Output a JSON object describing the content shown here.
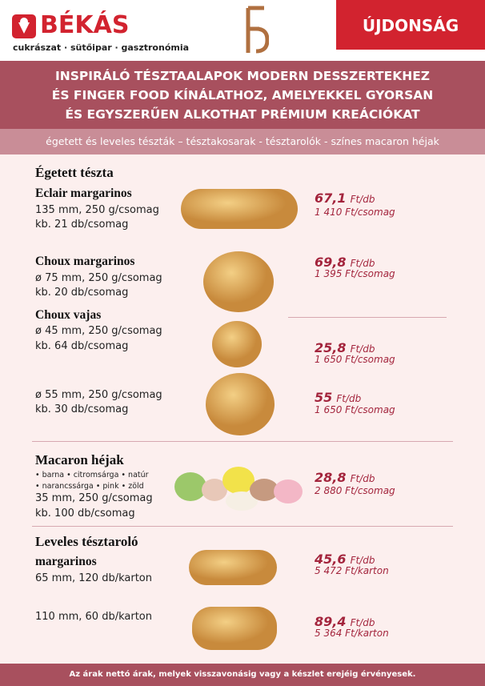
{
  "header": {
    "logo": "BÉKÁS",
    "tagline": "cukrászat · sütőipar · gasztronómia",
    "badge": "ÚJDONSÁG"
  },
  "headline": [
    "INSPIRÁLÓ TÉSZTAALAPOK MODERN DESSZERTEKHEZ",
    "ÉS FINGER FOOD KÍNÁLATHOZ, AMELYEKKEL GYORSAN",
    "ÉS EGYSZERŰEN ALKOTHAT PRÉMIUM KREÁCIÓKAT"
  ],
  "subheader": "égetett és leveles tészták – tésztakosarak - tésztarolók - színes macaron héjak",
  "sections": [
    {
      "title": "Égetett tészta",
      "items": [
        {
          "name": "Eclair margarinos",
          "specs": [
            "135 mm, 250 g/csomag",
            "kb. 21 db/csomag"
          ],
          "price": "67,1",
          "unit": "Ft/db",
          "pack": "1 410 Ft/csomag"
        },
        {
          "name": "Choux margarinos",
          "specs": [
            "ø 75 mm, 250 g/csomag",
            "kb. 20 db/csomag"
          ],
          "price": "69,8",
          "unit": "Ft/db",
          "pack": "1 395 Ft/csomag"
        },
        {
          "name": "Choux vajas",
          "specs": [
            "ø 45 mm, 250 g/csomag",
            "kb. 64 db/csomag"
          ],
          "price": "25,8",
          "unit": "Ft/db",
          "pack": "1 650 Ft/csomag"
        },
        {
          "specs": [
            "ø 55  mm, 250 g/csomag",
            "kb. 30 db/csomag"
          ],
          "price": "55",
          "unit": "Ft/db",
          "pack": "1 650 Ft/csomag"
        }
      ]
    },
    {
      "title": "Macaron héjak",
      "items": [
        {
          "colors": [
            "• barna • citromsárga • natúr",
            "• narancssárga • pink • zöld"
          ],
          "specs": [
            "35 mm, 250 g/csomag",
            "kb. 100 db/csomag"
          ],
          "price": "28,8",
          "unit": "Ft/db",
          "pack": "2 880 Ft/csomag"
        }
      ]
    },
    {
      "title": "Leveles tésztaroló",
      "items": [
        {
          "name": "margarinos",
          "specs": [
            "65 mm, 120 db/karton"
          ],
          "price": "45,6",
          "unit": "Ft/db",
          "pack": "5 472 Ft/karton"
        },
        {
          "specs": [
            "110 mm, 60 db/karton"
          ],
          "price": "89,4",
          "unit": "Ft/db",
          "pack": "5 364 Ft/karton"
        }
      ]
    }
  ],
  "footer": "Az árak nettó árak, melyek visszavonásig vagy a készlet erejéig érvényesek."
}
